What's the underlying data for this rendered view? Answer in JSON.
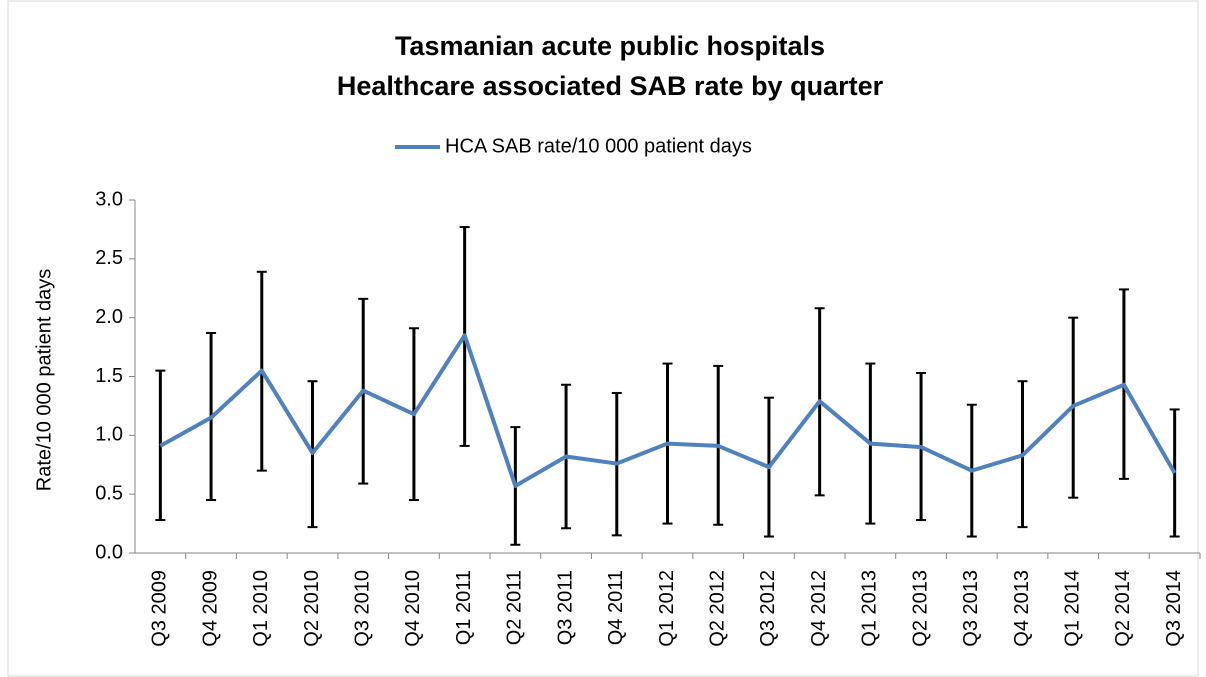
{
  "chart_data": {
    "type": "line",
    "title": [
      "Tasmanian acute public hospitals",
      "Healthcare associated SAB rate by quarter"
    ],
    "y_label": "Rate/10 000 patient days",
    "categories": [
      "Q3 2009",
      "Q4 2009",
      "Q1 2010",
      "Q2 2010",
      "Q3 2010",
      "Q4 2010",
      "Q1 2011",
      "Q2 2011",
      "Q3 2011",
      "Q4 2011",
      "Q1 2012",
      "Q2 2012",
      "Q3 2012",
      "Q4 2012",
      "Q1 2013",
      "Q2 2013",
      "Q3 2013",
      "Q4 2013",
      "Q1 2014",
      "Q2 2014",
      "Q3 2014"
    ],
    "series": [
      {
        "name": "HCA SAB rate/10 000 patient days",
        "color": "#4f81bd",
        "values": [
          0.91,
          1.15,
          1.55,
          0.85,
          1.38,
          1.18,
          1.85,
          0.57,
          0.82,
          0.76,
          0.93,
          0.91,
          0.73,
          1.29,
          0.93,
          0.9,
          0.7,
          0.83,
          1.25,
          1.43,
          0.68
        ],
        "lower": [
          0.28,
          0.45,
          0.7,
          0.22,
          0.59,
          0.45,
          0.91,
          0.07,
          0.21,
          0.15,
          0.25,
          0.24,
          0.14,
          0.49,
          0.25,
          0.28,
          0.14,
          0.22,
          0.47,
          0.63,
          0.14
        ],
        "upper": [
          1.55,
          1.87,
          2.39,
          1.46,
          2.16,
          1.91,
          2.77,
          1.07,
          1.43,
          1.36,
          1.61,
          1.59,
          1.32,
          2.08,
          1.61,
          1.53,
          1.26,
          1.46,
          2.0,
          2.24,
          1.22
        ]
      }
    ],
    "error_bar_color": "#000000",
    "ylim": [
      0,
      3
    ],
    "yticks": [
      {
        "value": 0,
        "label": "0.0"
      },
      0.5,
      {
        "value": 1,
        "label": "1.0"
      },
      1.5,
      {
        "value": 2,
        "label": "2.0"
      },
      2.5,
      {
        "value": 3,
        "label": "3.0"
      }
    ],
    "legend": "top"
  }
}
